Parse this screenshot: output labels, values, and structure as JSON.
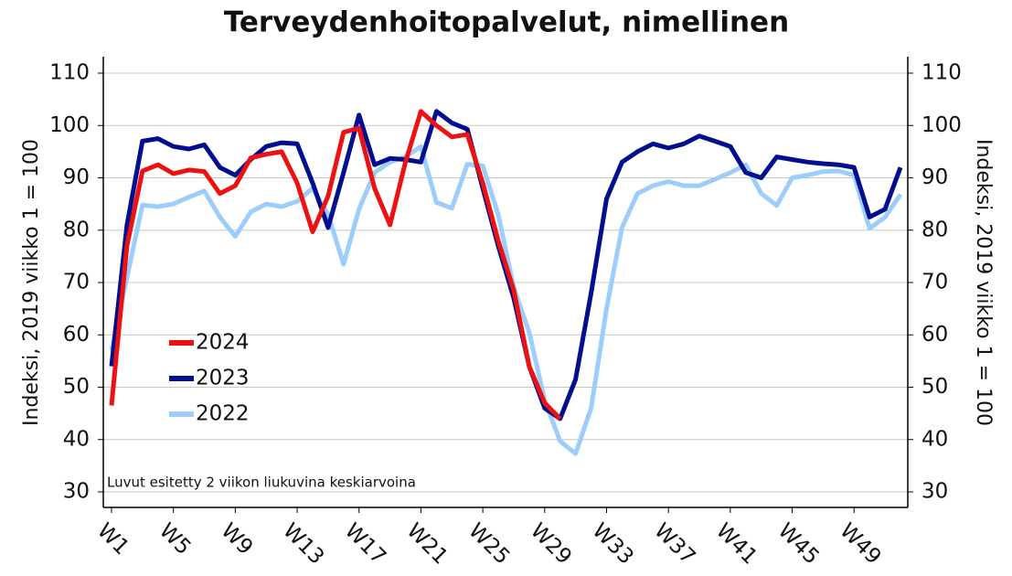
{
  "chart_data": {
    "type": "line",
    "title": "Terveydenhoitopalvelut, nimellinen",
    "y_label": "Indeksi, 2019 viikko 1 = 100",
    "y2_label": "Indeksi, 2019 viikko 1 = 100",
    "annotation": "Luvut esitetty 2 viikon liukuvina keskiarvoina",
    "categories": [
      "W1",
      null,
      null,
      null,
      "W5",
      null,
      null,
      null,
      "W9",
      null,
      null,
      null,
      "W13",
      null,
      null,
      null,
      "W17",
      null,
      null,
      null,
      "W21",
      null,
      null,
      null,
      "W25",
      null,
      null,
      null,
      "W29",
      null,
      null,
      null,
      "W33",
      null,
      null,
      null,
      "W37",
      null,
      null,
      null,
      "W41",
      null,
      null,
      null,
      "W45",
      null,
      null,
      null,
      "W49",
      null,
      null,
      null
    ],
    "ylim": [
      30,
      110
    ],
    "yticks": [
      30,
      40,
      50,
      60,
      70,
      80,
      90,
      100,
      110
    ],
    "y2lim": [
      30,
      110
    ],
    "y2ticks": [
      30,
      40,
      50,
      60,
      70,
      80,
      90,
      100,
      110
    ],
    "grid": true,
    "legend": "left",
    "series": [
      {
        "name": "2024",
        "color": "#ee1111",
        "values": [
          46.5,
          77,
          91.3,
          92.5,
          90.8,
          91.5,
          91.2,
          87,
          88.5,
          93.8,
          94.5,
          95,
          89,
          79.7,
          86.5,
          98.7,
          99.5,
          88,
          81,
          93,
          102.7,
          100,
          97.8,
          98.3,
          89,
          78,
          68.5,
          54,
          47,
          44,
          null,
          null,
          null,
          null,
          null,
          null,
          null,
          null,
          null,
          null,
          null,
          null,
          null,
          null,
          null,
          null,
          null,
          null,
          null,
          null,
          null,
          null
        ]
      },
      {
        "name": "2023",
        "color": "#000f8f",
        "values": [
          54,
          81,
          97,
          97.5,
          96,
          95.5,
          96.3,
          92,
          90.5,
          93.5,
          96,
          96.7,
          96.5,
          89,
          80.5,
          91,
          102,
          92.5,
          93.7,
          93.5,
          93,
          102.7,
          100.5,
          99.3,
          88,
          77,
          67,
          54,
          46,
          44,
          51.5,
          68,
          86,
          93,
          95,
          96.5,
          95.7,
          96.5,
          98,
          97,
          96,
          91,
          90,
          94,
          93.5,
          93,
          92.7,
          92.5,
          92,
          82.5,
          84,
          92
        ]
      },
      {
        "name": "2022",
        "color": "#9dcdfa",
        "values": [
          57,
          71,
          84.8,
          84.5,
          85,
          86.3,
          87.5,
          82.5,
          78.8,
          83.5,
          85,
          84.5,
          85.5,
          88,
          83,
          73.5,
          84,
          91,
          93,
          94,
          96,
          85.3,
          84.2,
          92.6,
          92.3,
          83,
          69,
          60.5,
          47.5,
          39.7,
          37.3,
          46,
          65,
          80.5,
          87,
          88.5,
          89.3,
          88.5,
          88.5,
          89.7,
          91,
          92.5,
          87,
          84.7,
          90,
          90.5,
          91.2,
          91.3,
          90.5,
          80.3,
          82.5,
          86.8
        ]
      }
    ]
  }
}
